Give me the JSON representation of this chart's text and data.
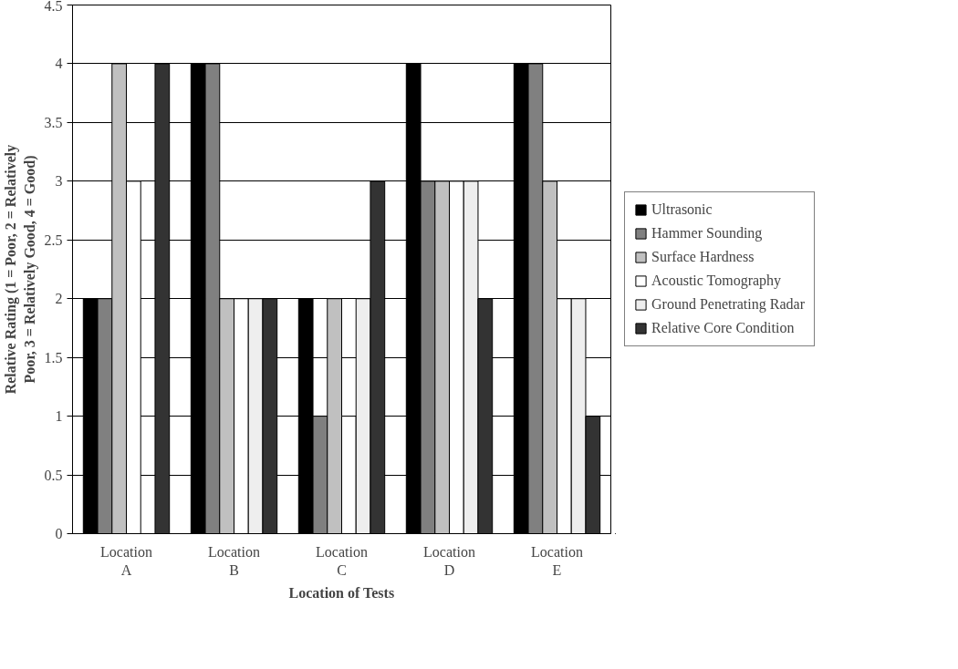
{
  "chart_data": {
    "type": "bar",
    "xlabel": "Location of Tests",
    "ylabel": "Relative Rating (1 = Poor, 2 = Relatively Poor, 3 = Relatively Good, 4 = Good)",
    "categories": [
      "Location A",
      "Location B",
      "Location C",
      "Location D",
      "Location E"
    ],
    "series": [
      {
        "name": "Ultrasonic",
        "color": "#000000",
        "values": [
          2,
          4,
          2,
          4,
          4
        ]
      },
      {
        "name": "Hammer Sounding",
        "color": "#808080",
        "values": [
          2,
          4,
          1,
          3,
          4
        ]
      },
      {
        "name": "Surface Hardness",
        "color": "#c0c0c0",
        "values": [
          4,
          2,
          2,
          3,
          3
        ]
      },
      {
        "name": "Acoustic Tomography",
        "color": "#ffffff",
        "values": [
          3,
          2,
          1,
          3,
          2
        ]
      },
      {
        "name": "Ground Penetrating Radar",
        "color": "#eeeeee",
        "values": [
          null,
          2,
          2,
          3,
          2
        ]
      },
      {
        "name": "Relative Core Condition",
        "color": "#333333",
        "values": [
          4,
          2,
          3,
          2,
          1
        ]
      }
    ],
    "ylim": [
      0,
      4.5
    ],
    "yticks": [
      0,
      0.5,
      1,
      1.5,
      2,
      2.5,
      3,
      3.5,
      4,
      4.5
    ],
    "grid": "y",
    "legend": "right"
  }
}
